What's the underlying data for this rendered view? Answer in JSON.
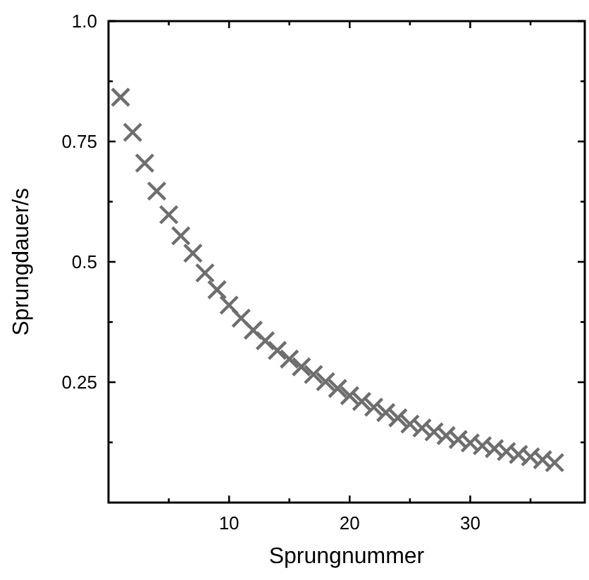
{
  "chart_data": {
    "type": "scatter",
    "xlabel": "Sprungnummer",
    "ylabel": "Sprungdauer/s",
    "x": [
      1,
      2,
      3,
      4,
      5,
      6,
      7,
      8,
      9,
      10,
      11,
      12,
      13,
      14,
      15,
      16,
      17,
      18,
      19,
      20,
      21,
      22,
      23,
      24,
      25,
      26,
      27,
      28,
      29,
      30,
      31,
      32,
      33,
      34,
      35,
      36,
      37
    ],
    "series": [
      {
        "color": "#6e6e6e",
        "values": [
          0.842,
          0.769,
          0.705,
          0.647,
          0.598,
          0.554,
          0.518,
          0.477,
          0.442,
          0.41,
          0.383,
          0.358,
          0.336,
          0.316,
          0.298,
          0.282,
          0.266,
          0.251,
          0.237,
          0.222,
          0.21,
          0.198,
          0.187,
          0.176,
          0.163,
          0.155,
          0.147,
          0.139,
          0.131,
          0.124,
          0.118,
          0.112,
          0.106,
          0.1,
          0.095,
          0.089,
          0.083
        ]
      }
    ],
    "xlim": [
      0,
      39.5
    ],
    "ylim": [
      0,
      1
    ],
    "xticks": [
      {
        "value": 5,
        "label": null
      },
      10,
      {
        "value": 15,
        "label": null
      },
      20,
      {
        "value": 25,
        "label": null
      },
      30,
      {
        "value": 35,
        "label": null
      }
    ],
    "yticks": [
      {
        "value": 0.125,
        "label": null
      },
      0.25,
      {
        "value": 0.375,
        "label": null
      },
      0.5,
      {
        "value": 0.625,
        "label": null
      },
      0.75,
      {
        "value": 0.875,
        "label": null
      },
      {
        "value": 1,
        "label": "1.0"
      }
    ],
    "marker": "cross",
    "grid": false
  }
}
